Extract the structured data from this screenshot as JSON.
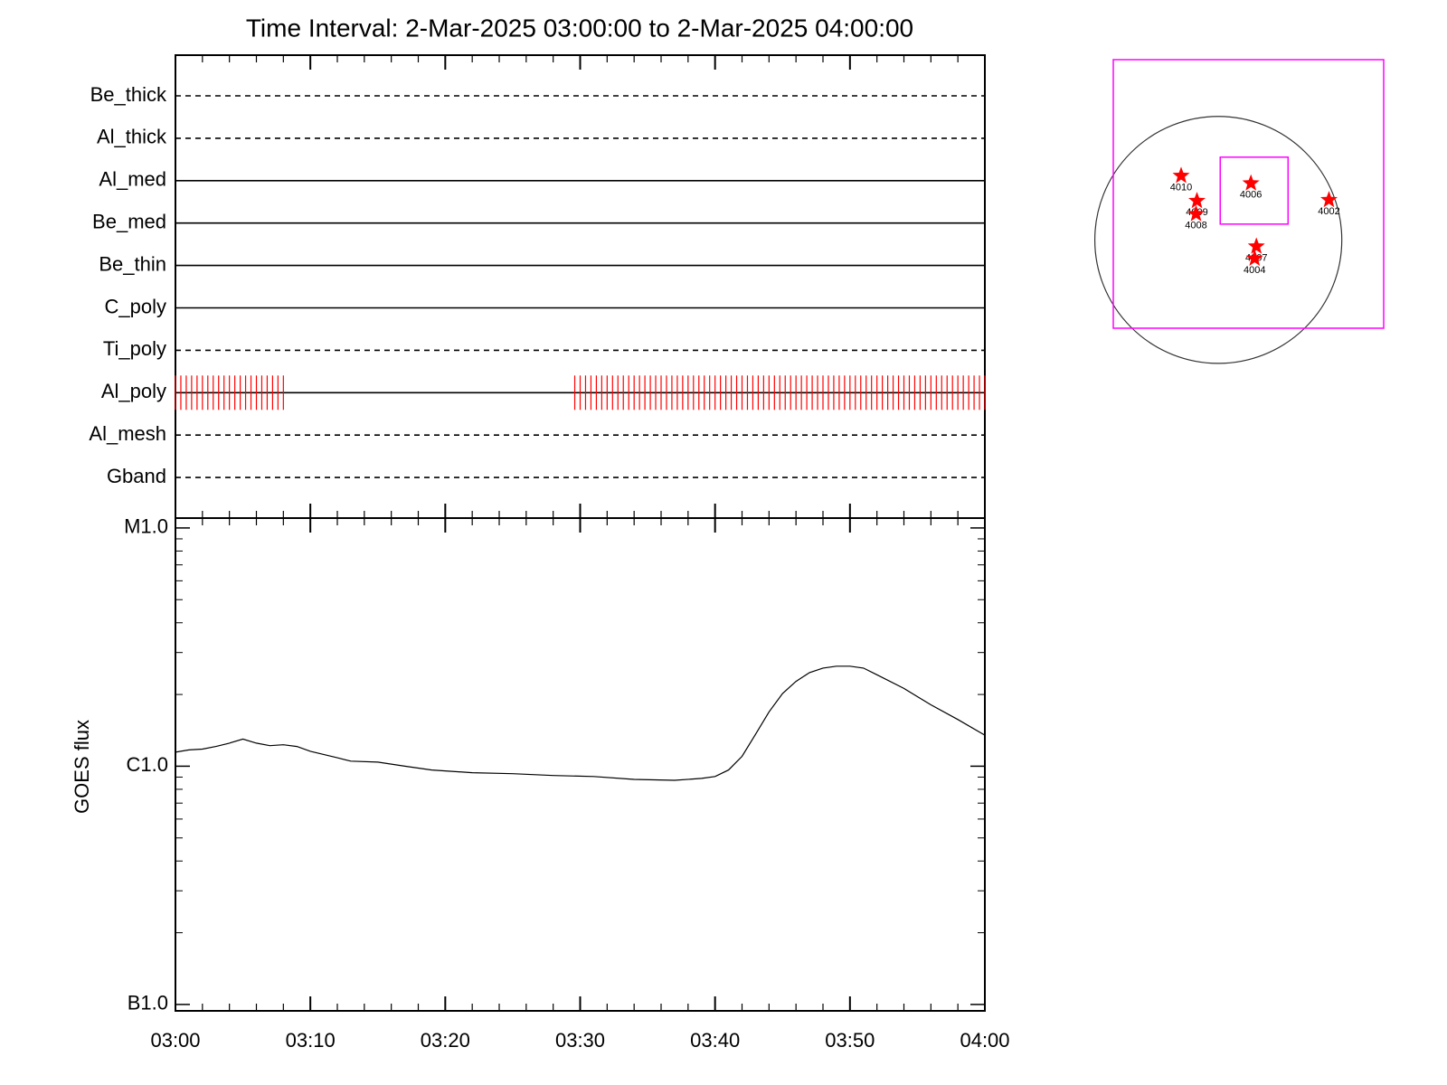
{
  "chart_data": [
    {
      "type": "timeline",
      "title": "Time Interval:  2-Mar-2025 03:00:00 to  2-Mar-2025 04:00:00",
      "categories": [
        "Be_thick",
        "Al_thick",
        "Al_med",
        "Be_med",
        "Be_thin",
        "C_poly",
        "Ti_poly",
        "Al_poly",
        "Al_mesh",
        "Gband"
      ],
      "line_styles": [
        "dashed",
        "dashed",
        "solid",
        "solid",
        "solid",
        "solid",
        "dashed",
        "solid",
        "dashed",
        "dashed"
      ],
      "xlim": [
        0,
        60
      ],
      "series": [
        {
          "name": "Al_poly",
          "color": "#ff0000",
          "x": [
            0,
            0.4,
            0.8,
            1.2,
            1.6,
            2,
            2.4,
            2.8,
            3.2,
            3.6,
            4,
            4.4,
            4.8,
            5.2,
            5.6,
            6,
            6.4,
            6.8,
            7.2,
            7.6,
            8,
            29.6,
            30,
            30.4,
            30.8,
            31.2,
            31.6,
            32,
            32.4,
            32.8,
            33.2,
            33.6,
            34,
            34.4,
            34.8,
            35.2,
            35.6,
            36,
            36.4,
            36.8,
            37.2,
            37.6,
            38,
            38.4,
            38.8,
            39.2,
            39.6,
            40,
            40.4,
            40.8,
            41.2,
            41.6,
            42,
            42.4,
            42.8,
            43.2,
            43.6,
            44,
            44.4,
            44.8,
            45.2,
            45.6,
            46,
            46.4,
            46.8,
            47.2,
            47.6,
            48,
            48.4,
            48.8,
            49.2,
            49.6,
            50,
            50.4,
            50.8,
            51.2,
            51.6,
            52,
            52.4,
            52.8,
            53.2,
            53.6,
            54,
            54.4,
            54.8,
            55.2,
            55.6,
            56,
            56.4,
            56.8,
            57.2,
            57.6,
            58,
            58.4,
            58.8,
            59.2,
            59.6,
            60
          ]
        }
      ]
    },
    {
      "type": "line",
      "ylabel": "GOES flux",
      "log_y": true,
      "color": "#000000",
      "xlim": [
        0,
        60
      ],
      "xticks": [
        {
          "value": 0,
          "label": "03:00"
        },
        {
          "value": 10,
          "label": "03:10"
        },
        {
          "value": 20,
          "label": "03:20"
        },
        {
          "value": 30,
          "label": "03:30"
        },
        {
          "value": 40,
          "label": "03:40"
        },
        {
          "value": 50,
          "label": "03:50"
        },
        {
          "value": 60,
          "label": "04:00"
        }
      ],
      "ylim": [
        9.4e-08,
        1.1e-05
      ],
      "yticks": [
        {
          "value": 1e-07,
          "label": "B1.0"
        },
        {
          "value": 1e-06,
          "label": "C1.0"
        },
        {
          "value": 1e-05,
          "label": "M1.0"
        }
      ],
      "x": [
        0,
        1,
        2,
        3,
        4,
        5,
        6,
        7,
        8,
        9,
        10,
        12,
        13,
        15,
        17,
        19,
        22,
        25,
        28,
        31,
        34,
        37,
        39,
        40,
        41,
        42,
        43,
        44,
        45,
        46,
        47,
        48,
        49,
        50,
        51,
        52,
        54,
        56,
        58,
        60
      ],
      "y": [
        1.145e-06,
        1.17e-06,
        1.18e-06,
        1.21e-06,
        1.25e-06,
        1.3e-06,
        1.25e-06,
        1.22e-06,
        1.23e-06,
        1.21e-06,
        1.155e-06,
        1.085e-06,
        1.05e-06,
        1.04e-06,
        1e-06,
        9.64e-07,
        9.39e-07,
        9.3e-07,
        9.14e-07,
        9.05e-07,
        8.8e-07,
        8.73e-07,
        8.89e-07,
        9.05e-07,
        9.64e-07,
        1.1e-06,
        1.36e-06,
        1.69e-06,
        2.02e-06,
        2.27e-06,
        2.47e-06,
        2.58e-06,
        2.63e-06,
        2.63e-06,
        2.58e-06,
        2.42e-06,
        2.12e-06,
        1.81e-06,
        1.57e-06,
        1.35e-06
      ]
    },
    {
      "type": "map",
      "xlim": [
        -825,
        1299
      ],
      "ylim": [
        -694,
        1416
      ],
      "solar_radius": 970,
      "box_color": "#ff00ff",
      "box": {
        "x": [
          15,
          548
        ],
        "y": [
          124,
          650
        ]
      },
      "marker_color": "#ff0000",
      "points": [
        {
          "label": "4010",
          "x": -292,
          "y": 504
        },
        {
          "label": "4009",
          "x": -168,
          "y": 307
        },
        {
          "label": "4008",
          "x": -175,
          "y": 204
        },
        {
          "label": "4006",
          "x": 256,
          "y": 445
        },
        {
          "label": "4002",
          "x": 869,
          "y": 314
        },
        {
          "label": "4007",
          "x": 299,
          "y": -51
        },
        {
          "label": "4004",
          "x": 285,
          "y": -146
        }
      ]
    }
  ]
}
